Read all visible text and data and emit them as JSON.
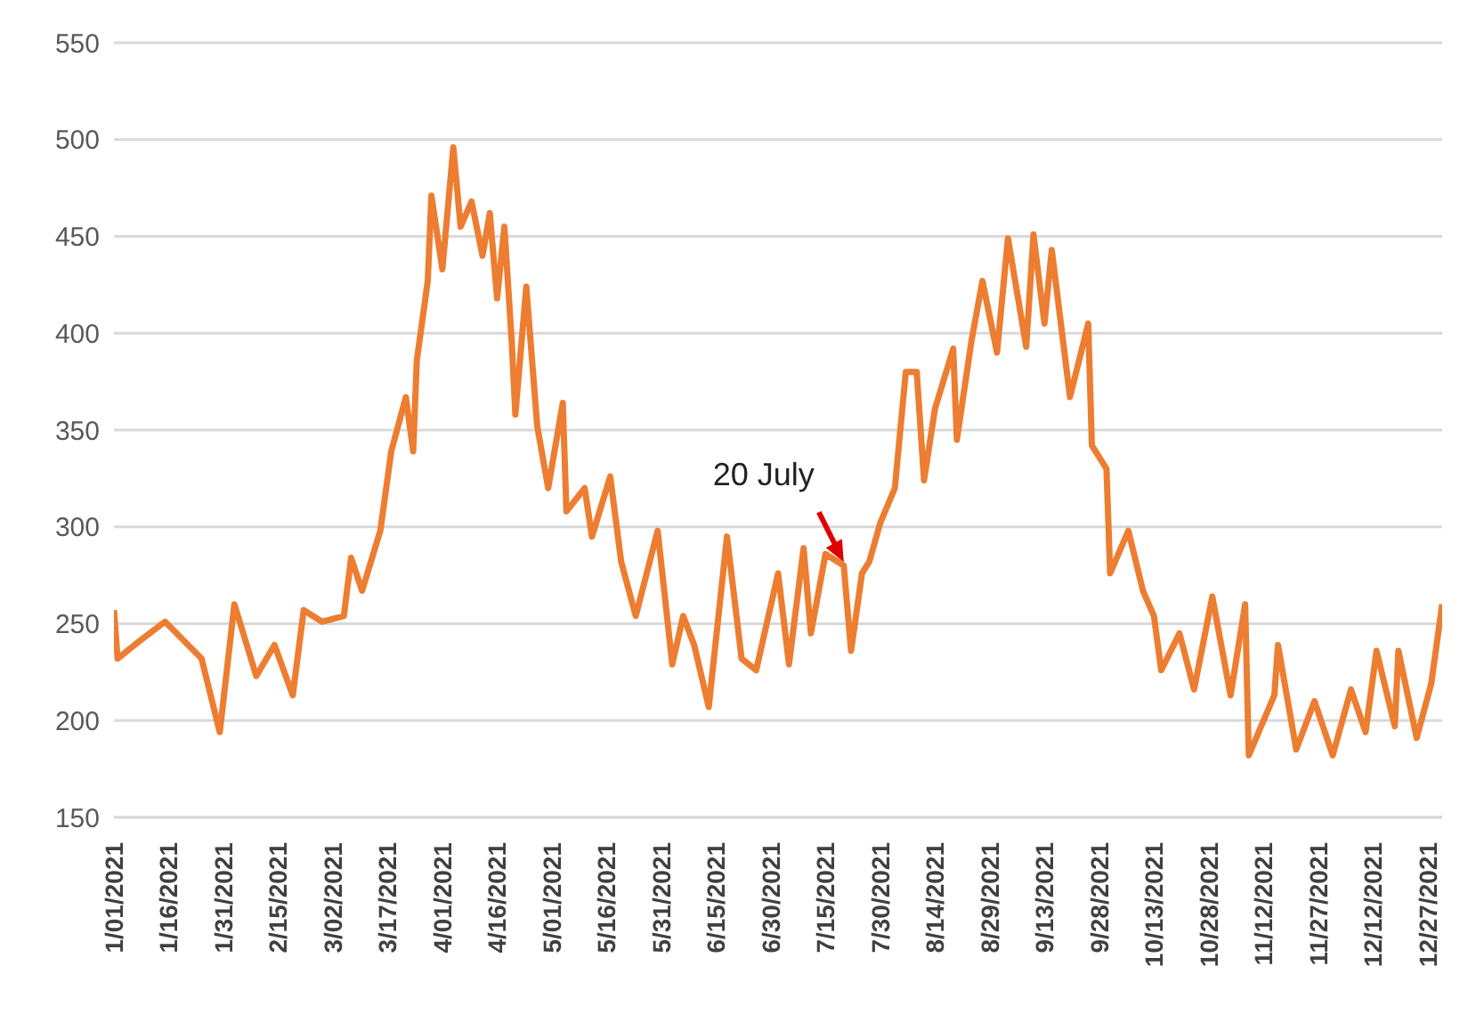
{
  "chart_data": {
    "type": "line",
    "x": [
      "2021-01-01",
      "2021-01-02",
      "2021-01-08",
      "2021-01-15",
      "2021-01-25",
      "2021-01-30",
      "2021-02-03",
      "2021-02-09",
      "2021-02-14",
      "2021-02-19",
      "2021-02-22",
      "2021-02-27",
      "2021-03-05",
      "2021-03-07",
      "2021-03-10",
      "2021-03-15",
      "2021-03-18",
      "2021-03-22",
      "2021-03-24",
      "2021-03-25",
      "2021-03-28",
      "2021-03-29",
      "2021-04-01",
      "2021-04-04",
      "2021-04-06",
      "2021-04-09",
      "2021-04-12",
      "2021-04-14",
      "2021-04-16",
      "2021-04-18",
      "2021-04-20",
      "2021-04-21",
      "2021-04-24",
      "2021-04-27",
      "2021-04-30",
      "2021-05-04",
      "2021-05-05",
      "2021-05-10",
      "2021-05-12",
      "2021-05-17",
      "2021-05-20",
      "2021-05-24",
      "2021-05-30",
      "2021-06-03",
      "2021-06-06",
      "2021-06-09",
      "2021-06-13",
      "2021-06-18",
      "2021-06-22",
      "2021-06-26",
      "2021-07-02",
      "2021-07-05",
      "2021-07-09",
      "2021-07-11",
      "2021-07-15",
      "2021-07-20",
      "2021-07-22",
      "2021-07-25",
      "2021-07-27",
      "2021-07-30",
      "2021-08-03",
      "2021-08-06",
      "2021-08-09",
      "2021-08-11",
      "2021-08-14",
      "2021-08-19",
      "2021-08-20",
      "2021-08-24",
      "2021-08-27",
      "2021-08-31",
      "2021-09-03",
      "2021-09-08",
      "2021-09-10",
      "2021-09-13",
      "2021-09-15",
      "2021-09-20",
      "2021-09-25",
      "2021-09-26",
      "2021-09-30",
      "2021-10-01",
      "2021-10-06",
      "2021-10-10",
      "2021-10-13",
      "2021-10-15",
      "2021-10-20",
      "2021-10-24",
      "2021-10-29",
      "2021-11-03",
      "2021-11-07",
      "2021-11-08",
      "2021-11-15",
      "2021-11-16",
      "2021-11-21",
      "2021-11-26",
      "2021-12-01",
      "2021-12-06",
      "2021-12-10",
      "2021-12-13",
      "2021-12-18",
      "2021-12-19",
      "2021-12-24",
      "2021-12-28",
      "2021-12-31"
    ],
    "series": [
      {
        "color": "#ed7d31",
        "values": [
          257,
          232,
          241,
          251,
          232,
          194,
          260,
          223,
          239,
          213,
          257,
          251,
          254,
          284,
          267,
          298,
          339,
          367,
          339,
          386,
          427,
          471,
          433,
          496,
          455,
          468,
          440,
          462,
          418,
          455,
          396,
          358,
          424,
          352,
          320,
          364,
          308,
          320,
          295,
          326,
          282,
          254,
          298,
          229,
          254,
          239,
          207,
          295,
          232,
          226,
          276,
          229,
          289,
          245,
          286,
          280,
          236,
          276,
          282,
          302,
          320,
          380,
          380,
          324,
          361,
          392,
          345,
          396,
          427,
          390,
          449,
          393,
          451,
          405,
          443,
          367,
          405,
          342,
          330,
          276,
          298,
          267,
          254,
          226,
          245,
          216,
          264,
          213,
          260,
          182,
          213,
          239,
          185,
          210,
          182,
          216,
          194,
          236,
          197,
          236,
          191,
          219,
          260
        ]
      }
    ],
    "xlim": [
      "2021-01-01",
      "2021-12-31"
    ],
    "xticks": [
      {
        "value": "2021-01-01",
        "label": "1/01/2021"
      },
      {
        "value": "2021-01-16",
        "label": "1/16/2021"
      },
      {
        "value": "2021-01-31",
        "label": "1/31/2021"
      },
      {
        "value": "2021-02-15",
        "label": "2/15/2021"
      },
      {
        "value": "2021-03-02",
        "label": "3/02/2021"
      },
      {
        "value": "2021-03-17",
        "label": "3/17/2021"
      },
      {
        "value": "2021-04-01",
        "label": "4/01/2021"
      },
      {
        "value": "2021-04-16",
        "label": "4/16/2021"
      },
      {
        "value": "2021-05-01",
        "label": "5/01/2021"
      },
      {
        "value": "2021-05-16",
        "label": "5/16/2021"
      },
      {
        "value": "2021-05-31",
        "label": "5/31/2021"
      },
      {
        "value": "2021-06-15",
        "label": "6/15/2021"
      },
      {
        "value": "2021-06-30",
        "label": "6/30/2021"
      },
      {
        "value": "2021-07-15",
        "label": "7/15/2021"
      },
      {
        "value": "2021-07-30",
        "label": "7/30/2021"
      },
      {
        "value": "2021-08-14",
        "label": "8/14/2021"
      },
      {
        "value": "2021-08-29",
        "label": "8/29/2021"
      },
      {
        "value": "2021-09-13",
        "label": "9/13/2021"
      },
      {
        "value": "2021-09-28",
        "label": "9/28/2021"
      },
      {
        "value": "2021-10-13",
        "label": "10/13/2021"
      },
      {
        "value": "2021-10-28",
        "label": "10/28/2021"
      },
      {
        "value": "2021-11-12",
        "label": "11/12/2021"
      },
      {
        "value": "2021-11-27",
        "label": "11/27/2021"
      },
      {
        "value": "2021-12-12",
        "label": "12/12/2021"
      },
      {
        "value": "2021-12-27",
        "label": "12/27/2021"
      }
    ],
    "ylim": [
      150,
      550
    ],
    "yticks": [
      150,
      200,
      250,
      300,
      350,
      400,
      450,
      500,
      550
    ],
    "grid": "y",
    "marker": "none",
    "annotations": [
      {
        "text": "20 July",
        "x": "2021-07-20",
        "y": 280
      }
    ]
  }
}
